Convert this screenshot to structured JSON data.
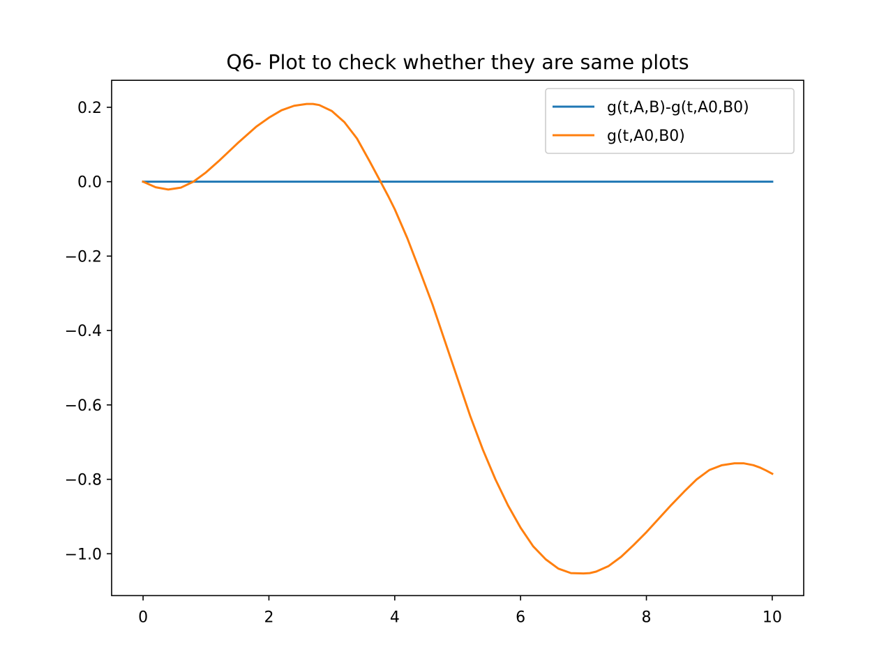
{
  "chart_data": {
    "type": "line",
    "title": "Q6- Plot to check whether they are same plots",
    "xlabel": "",
    "ylabel": "",
    "xlim": [
      -0.5,
      10.5
    ],
    "ylim": [
      -1.1125,
      0.2725
    ],
    "grid": false,
    "legend_position": "top-right",
    "x_ticks": [
      0,
      2,
      4,
      6,
      8,
      10
    ],
    "x_tick_labels": [
      "0",
      "2",
      "4",
      "6",
      "8",
      "10"
    ],
    "y_ticks": [
      0.2,
      0.0,
      -0.2,
      -0.4,
      -0.6,
      -0.8,
      -1.0
    ],
    "y_tick_labels": [
      "0.2",
      "0.0",
      "−0.2",
      "−0.4",
      "−0.6",
      "−0.8",
      "−1.0"
    ],
    "series": [
      {
        "name": "g(t,A,B)-g(t,A0,B0)",
        "color": "#1f77b4",
        "x": [
          0,
          10
        ],
        "y": [
          0.0,
          0.0
        ]
      },
      {
        "name": "g(t,A0,B0)",
        "color": "#ff7f0e",
        "x": [
          0,
          0.2,
          0.4,
          0.6,
          0.8,
          1.0,
          1.2,
          1.5,
          1.8,
          2.0,
          2.2,
          2.4,
          2.6,
          2.7,
          2.8,
          3.0,
          3.2,
          3.4,
          3.6,
          3.8,
          3.9,
          4.0,
          4.2,
          4.4,
          4.6,
          4.8,
          5.0,
          5.2,
          5.4,
          5.6,
          5.8,
          6.0,
          6.2,
          6.4,
          6.6,
          6.8,
          7.0,
          7.1,
          7.2,
          7.4,
          7.6,
          7.8,
          8.0,
          8.2,
          8.4,
          8.6,
          8.8,
          9.0,
          9.2,
          9.4,
          9.55,
          9.7,
          9.8,
          9.9,
          10.0
        ],
        "y": [
          0.0,
          -0.015,
          -0.021,
          -0.016,
          0.0,
          0.025,
          0.055,
          0.103,
          0.148,
          0.172,
          0.192,
          0.204,
          0.209,
          0.209,
          0.206,
          0.19,
          0.16,
          0.116,
          0.055,
          -0.008,
          -0.04,
          -0.074,
          -0.152,
          -0.24,
          -0.33,
          -0.43,
          -0.53,
          -0.63,
          -0.72,
          -0.8,
          -0.87,
          -0.93,
          -0.98,
          -1.015,
          -1.04,
          -1.052,
          -1.053,
          -1.052,
          -1.048,
          -1.033,
          -1.008,
          -0.976,
          -0.942,
          -0.905,
          -0.868,
          -0.833,
          -0.8,
          -0.775,
          -0.762,
          -0.757,
          -0.757,
          -0.762,
          -0.768,
          -0.776,
          -0.785
        ]
      }
    ]
  }
}
